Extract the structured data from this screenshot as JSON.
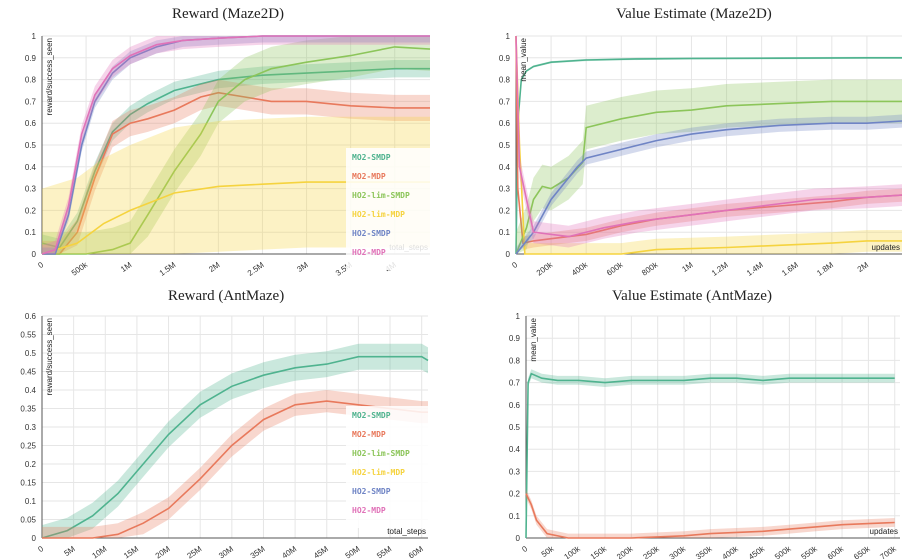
{
  "chart_data": [
    {
      "type": "line",
      "title": "Reward (Maze2D)",
      "ylabel": "reward/success_seen",
      "xlabel": "total_steps",
      "ylim": [
        0,
        1
      ],
      "xlim": [
        0,
        4400000
      ],
      "yticks": [
        "0",
        "0.1",
        "0.2",
        "0.3",
        "0.4",
        "0.5",
        "0.6",
        "0.7",
        "0.8",
        "0.9",
        "1"
      ],
      "xticks": [
        {
          "v": 0,
          "t": "0"
        },
        {
          "v": 500000,
          "t": "500k"
        },
        {
          "v": 1000000,
          "t": "1M"
        },
        {
          "v": 1500000,
          "t": "1.5M"
        },
        {
          "v": 2000000,
          "t": "2M"
        },
        {
          "v": 2500000,
          "t": "2.5M"
        },
        {
          "v": 3000000,
          "t": "3M"
        },
        {
          "v": 3500000,
          "t": "3.5M"
        },
        {
          "v": 4000000,
          "t": "4M"
        }
      ],
      "grid": true,
      "legend_position": "right",
      "series": [
        {
          "name": "MO2-SMDP",
          "color": "#4fb38f",
          "x": [
            0,
            200000,
            400000,
            600000,
            800000,
            1000000,
            1200000,
            1500000,
            2000000,
            2500000,
            3000000,
            3500000,
            4000000,
            4400000
          ],
          "y": [
            0.05,
            0.03,
            0.15,
            0.38,
            0.56,
            0.64,
            0.69,
            0.75,
            0.8,
            0.82,
            0.83,
            0.84,
            0.85,
            0.85
          ],
          "band": 0.04
        },
        {
          "name": "MO2-MDP",
          "color": "#e8795c",
          "x": [
            0,
            200000,
            400000,
            600000,
            800000,
            1000000,
            1200000,
            1500000,
            1800000,
            2000000,
            2300000,
            2600000,
            3000000,
            3500000,
            4000000,
            4400000
          ],
          "y": [
            0,
            0,
            0.1,
            0.35,
            0.55,
            0.6,
            0.62,
            0.66,
            0.72,
            0.74,
            0.72,
            0.7,
            0.7,
            0.68,
            0.67,
            0.67
          ],
          "band": 0.06
        },
        {
          "name": "HO2-lim-SMDP",
          "color": "#8cc55a",
          "x": [
            0,
            500000,
            800000,
            1000000,
            1200000,
            1500000,
            1800000,
            2000000,
            2300000,
            2600000,
            3000000,
            3500000,
            4000000,
            4400000
          ],
          "y": [
            0,
            0,
            0.02,
            0.05,
            0.18,
            0.38,
            0.55,
            0.7,
            0.8,
            0.85,
            0.88,
            0.91,
            0.95,
            0.94
          ],
          "band": 0.1
        },
        {
          "name": "HO2-lim-MDP",
          "color": "#f5d33f",
          "x": [
            0,
            400000,
            700000,
            1000000,
            1500000,
            2000000,
            2500000,
            3000000,
            3500000,
            4000000,
            4400000
          ],
          "y": [
            0,
            0.05,
            0.14,
            0.2,
            0.28,
            0.31,
            0.32,
            0.33,
            0.33,
            0.33,
            0.33
          ],
          "band": 0.3
        },
        {
          "name": "HO2-SMDP",
          "color": "#6f84c5",
          "x": [
            0,
            150000,
            300000,
            450000,
            600000,
            800000,
            1000000,
            1300000,
            1600000,
            2000000,
            2500000,
            3000000,
            3500000,
            4000000,
            4400000
          ],
          "y": [
            0,
            0,
            0.18,
            0.5,
            0.7,
            0.83,
            0.9,
            0.95,
            0.98,
            0.99,
            1,
            1,
            1,
            1,
            1
          ],
          "band": 0.03
        },
        {
          "name": "HO2-MDP",
          "color": "#e072b8",
          "x": [
            0,
            150000,
            300000,
            450000,
            600000,
            800000,
            1000000,
            1300000,
            1600000,
            2000000,
            2500000,
            3000000,
            3500000,
            4000000,
            4400000
          ],
          "y": [
            0,
            0.02,
            0.22,
            0.55,
            0.73,
            0.85,
            0.91,
            0.96,
            0.98,
            0.99,
            1,
            1,
            1,
            1,
            1
          ],
          "band": 0.04
        }
      ]
    },
    {
      "type": "line",
      "title": "Value Estimate (Maze2D)",
      "ylabel": "mean_value",
      "xlabel": "updates",
      "ylim": [
        0,
        1
      ],
      "xlim": [
        0,
        2200000
      ],
      "yticks": [
        "0",
        "0.1",
        "0.2",
        "0.3",
        "0.4",
        "0.5",
        "0.6",
        "0.7",
        "0.8",
        "0.9",
        "1"
      ],
      "xticks": [
        {
          "v": 0,
          "t": "0"
        },
        {
          "v": 200000,
          "t": "200k"
        },
        {
          "v": 400000,
          "t": "400k"
        },
        {
          "v": 600000,
          "t": "600k"
        },
        {
          "v": 800000,
          "t": "800k"
        },
        {
          "v": 1000000,
          "t": "1M"
        },
        {
          "v": 1200000,
          "t": "1.2M"
        },
        {
          "v": 1400000,
          "t": "1.4M"
        },
        {
          "v": 1600000,
          "t": "1.6M"
        },
        {
          "v": 1800000,
          "t": "1.8M"
        },
        {
          "v": 2000000,
          "t": "2M"
        }
      ],
      "grid": true,
      "series": [
        {
          "name": "MO2-SMDP",
          "color": "#4fb38f",
          "x": [
            0,
            10000,
            30000,
            60000,
            100000,
            200000,
            400000,
            700000,
            1000000,
            1500000,
            2000000,
            2200000
          ],
          "y": [
            0,
            0.6,
            0.8,
            0.84,
            0.86,
            0.88,
            0.89,
            0.895,
            0.897,
            0.898,
            0.9,
            0.9
          ],
          "band": 0.005
        },
        {
          "name": "MO2-MDP",
          "color": "#e8795c",
          "x": [
            0,
            10000,
            40000,
            100000,
            200000,
            400000,
            600000,
            800000,
            1000000,
            1200000,
            1500000,
            1800000,
            2000000,
            2200000
          ],
          "y": [
            1,
            0.3,
            0.05,
            0.06,
            0.07,
            0.09,
            0.13,
            0.16,
            0.18,
            0.2,
            0.22,
            0.24,
            0.26,
            0.27
          ],
          "band": 0.03
        },
        {
          "name": "HO2-lim-SMDP",
          "color": "#8cc55a",
          "x": [
            0,
            60000,
            100000,
            150000,
            200000,
            300000,
            380000,
            400000,
            600000,
            800000,
            1000000,
            1200000,
            1500000,
            1800000,
            2000000,
            2200000
          ],
          "y": [
            0,
            0.12,
            0.25,
            0.31,
            0.3,
            0.35,
            0.42,
            0.58,
            0.62,
            0.65,
            0.66,
            0.68,
            0.69,
            0.7,
            0.7,
            0.7
          ],
          "band": 0.1
        },
        {
          "name": "HO2-lim-MDP",
          "color": "#f5d33f",
          "x": [
            0,
            20000,
            50000,
            600000,
            700000,
            800000,
            1000000,
            1200000,
            1500000,
            1800000,
            2000000,
            2200000
          ],
          "y": [
            1,
            0.5,
            0,
            0,
            0.01,
            0.02,
            0.025,
            0.03,
            0.04,
            0.05,
            0.06,
            0.06
          ],
          "band": 0.05
        },
        {
          "name": "HO2-SMDP",
          "color": "#6f84c5",
          "x": [
            0,
            100000,
            200000,
            300000,
            350000,
            400000,
            600000,
            800000,
            1000000,
            1200000,
            1500000,
            1800000,
            2000000,
            2200000
          ],
          "y": [
            0,
            0.1,
            0.25,
            0.35,
            0.4,
            0.44,
            0.48,
            0.52,
            0.55,
            0.57,
            0.59,
            0.6,
            0.6,
            0.61
          ],
          "band": 0.03
        },
        {
          "name": "HO2-MDP",
          "color": "#e072b8",
          "x": [
            0,
            20000,
            100000,
            300000,
            500000,
            700000,
            900000,
            1100000,
            1400000,
            1700000,
            2000000,
            2200000
          ],
          "y": [
            1,
            0.4,
            0.1,
            0.08,
            0.12,
            0.15,
            0.17,
            0.19,
            0.22,
            0.25,
            0.26,
            0.27
          ],
          "band": 0.05
        }
      ]
    },
    {
      "type": "line",
      "title": "Reward (AntMaze)",
      "ylabel": "reward/success_seen",
      "xlabel": "total_steps",
      "ylim": [
        0,
        0.6
      ],
      "xlim": [
        0,
        61000000
      ],
      "yticks": [
        "0",
        "0.05",
        "0.1",
        "0.15",
        "0.2",
        "0.25",
        "0.3",
        "0.35",
        "0.4",
        "0.45",
        "0.5",
        "0.55",
        "0.6"
      ],
      "xticks": [
        {
          "v": 0,
          "t": "0"
        },
        {
          "v": 5000000,
          "t": "5M"
        },
        {
          "v": 10000000,
          "t": "10M"
        },
        {
          "v": 15000000,
          "t": "15M"
        },
        {
          "v": 20000000,
          "t": "20M"
        },
        {
          "v": 25000000,
          "t": "25M"
        },
        {
          "v": 30000000,
          "t": "30M"
        },
        {
          "v": 35000000,
          "t": "35M"
        },
        {
          "v": 40000000,
          "t": "40M"
        },
        {
          "v": 45000000,
          "t": "45M"
        },
        {
          "v": 50000000,
          "t": "50M"
        },
        {
          "v": 55000000,
          "t": "55M"
        },
        {
          "v": 60000000,
          "t": "60M"
        }
      ],
      "grid": true,
      "legend_position": "right",
      "series": [
        {
          "name": "MO2-SMDP",
          "color": "#4fb38f",
          "x": [
            0,
            4000000,
            8000000,
            12000000,
            16000000,
            20000000,
            25000000,
            30000000,
            35000000,
            40000000,
            45000000,
            50000000,
            55000000,
            60000000,
            61000000
          ],
          "y": [
            0,
            0.02,
            0.06,
            0.12,
            0.2,
            0.28,
            0.36,
            0.41,
            0.44,
            0.46,
            0.47,
            0.49,
            0.49,
            0.49,
            0.48
          ],
          "band": 0.035
        },
        {
          "name": "MO2-MDP",
          "color": "#e8795c",
          "x": [
            0,
            8000000,
            12000000,
            16000000,
            20000000,
            25000000,
            30000000,
            35000000,
            40000000,
            45000000,
            50000000,
            55000000,
            60000000,
            61000000
          ],
          "y": [
            0,
            0,
            0.01,
            0.04,
            0.08,
            0.16,
            0.25,
            0.32,
            0.36,
            0.37,
            0.36,
            0.35,
            0.34,
            0.34
          ],
          "band": 0.03
        }
      ]
    },
    {
      "type": "line",
      "title": "Value Estimate (AntMaze)",
      "ylabel": "mean_value",
      "xlabel": "updates",
      "ylim": [
        0,
        1
      ],
      "xlim": [
        0,
        710000
      ],
      "yticks": [
        "0",
        "0.1",
        "0.2",
        "0.3",
        "0.4",
        "0.5",
        "0.6",
        "0.7",
        "0.8",
        "0.9",
        "1"
      ],
      "xticks": [
        {
          "v": 0,
          "t": "0"
        },
        {
          "v": 50000,
          "t": "50k"
        },
        {
          "v": 100000,
          "t": "100k"
        },
        {
          "v": 150000,
          "t": "150k"
        },
        {
          "v": 200000,
          "t": "200k"
        },
        {
          "v": 250000,
          "t": "250k"
        },
        {
          "v": 300000,
          "t": "300k"
        },
        {
          "v": 350000,
          "t": "350k"
        },
        {
          "v": 400000,
          "t": "400k"
        },
        {
          "v": 450000,
          "t": "450k"
        },
        {
          "v": 500000,
          "t": "500k"
        },
        {
          "v": 550000,
          "t": "550k"
        },
        {
          "v": 600000,
          "t": "600k"
        },
        {
          "v": 650000,
          "t": "650k"
        },
        {
          "v": 700000,
          "t": "700k"
        }
      ],
      "grid": true,
      "series": [
        {
          "name": "MO2-SMDP",
          "color": "#4fb38f",
          "x": [
            0,
            4000,
            10000,
            30000,
            60000,
            100000,
            150000,
            200000,
            250000,
            300000,
            350000,
            400000,
            450000,
            500000,
            550000,
            600000,
            650000,
            700000
          ],
          "y": [
            0,
            0.7,
            0.74,
            0.72,
            0.71,
            0.71,
            0.7,
            0.71,
            0.71,
            0.71,
            0.72,
            0.72,
            0.71,
            0.72,
            0.72,
            0.72,
            0.72,
            0.72
          ],
          "band": 0.02
        },
        {
          "name": "MO2-MDP",
          "color": "#e8795c",
          "x": [
            0,
            10000,
            20000,
            40000,
            80000,
            150000,
            200000,
            250000,
            300000,
            350000,
            400000,
            450000,
            500000,
            550000,
            600000,
            650000,
            700000
          ],
          "y": [
            0.2,
            0.15,
            0.08,
            0.02,
            0,
            0,
            0,
            0.005,
            0.01,
            0.02,
            0.025,
            0.03,
            0.04,
            0.05,
            0.06,
            0.065,
            0.07
          ],
          "band": 0.02
        }
      ]
    }
  ],
  "legend": {
    "entries": [
      {
        "label": "MO2-SMDP",
        "color": "#4fb38f"
      },
      {
        "label": "MO2-MDP",
        "color": "#e8795c"
      },
      {
        "label": "HO2-lim-SMDP",
        "color": "#8cc55a"
      },
      {
        "label": "HO2-lim-MDP",
        "color": "#f5d33f"
      },
      {
        "label": "HO2-SMDP",
        "color": "#6f84c5"
      },
      {
        "label": "HO2-MDP",
        "color": "#e072b8"
      }
    ]
  }
}
